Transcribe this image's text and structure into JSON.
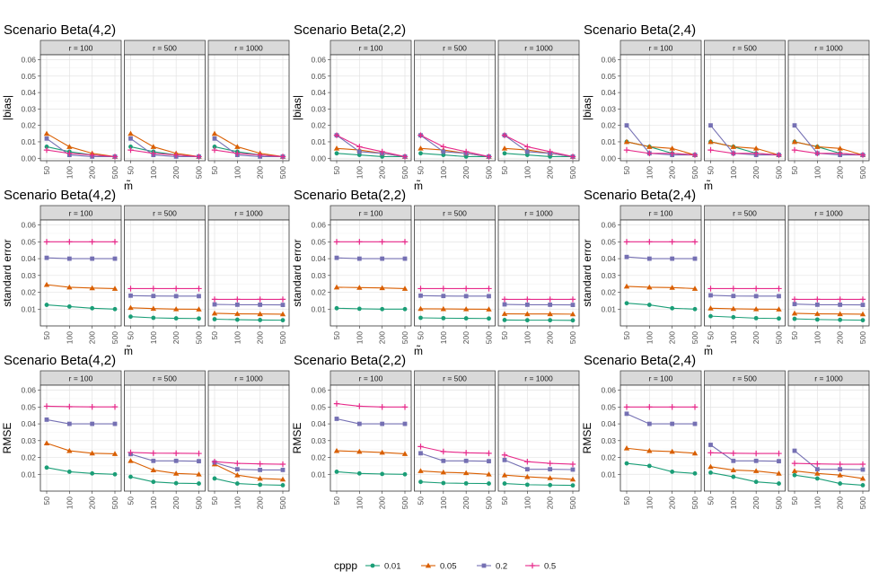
{
  "legend": {
    "title": "cppp",
    "entries": [
      {
        "label": "0.01",
        "color": "#1B9E77",
        "shape": "circle"
      },
      {
        "label": "0.05",
        "color": "#D95F02",
        "shape": "triangle"
      },
      {
        "label": "0.2",
        "color": "#7570B3",
        "shape": "square"
      },
      {
        "label": "0.5",
        "color": "#E7298A",
        "shape": "plus"
      }
    ]
  },
  "chart_data": {
    "type": "line",
    "facet_labels": [
      "r = 100",
      "r = 500",
      "r = 1000"
    ],
    "x": [
      "50",
      "100",
      "200",
      "500"
    ],
    "xlabel": "m̃",
    "y_ticks": [
      "0.01",
      "0.02",
      "0.03",
      "0.04",
      "0.05",
      "0.06"
    ],
    "ylim": [
      0,
      0.063
    ],
    "scenarios": [
      "Scenario Beta(4,2)",
      "Scenario Beta(2,2)",
      "Scenario Beta(2,4)"
    ],
    "rows": [
      {
        "ylabel": "|bias|",
        "y_ticks": [
          "0.00",
          "0.01",
          "0.02",
          "0.03",
          "0.04",
          "0.05",
          "0.06"
        ],
        "ylim": [
          -0.0015,
          0.063
        ],
        "show_xlabel": true,
        "panels": [
          [
            [
              [
                0.007,
                0.004,
                0.002,
                0.001
              ],
              [
                0.015,
                0.007,
                0.003,
                0.001
              ],
              [
                0.012,
                0.002,
                0.001,
                0.001
              ],
              [
                0.005,
                0.003,
                0.002,
                0.001
              ]
            ],
            [
              [
                0.007,
                0.004,
                0.002,
                0.001
              ],
              [
                0.015,
                0.007,
                0.003,
                0.001
              ],
              [
                0.012,
                0.002,
                0.001,
                0.001
              ],
              [
                0.005,
                0.003,
                0.002,
                0.001
              ]
            ],
            [
              [
                0.007,
                0.004,
                0.002,
                0.001
              ],
              [
                0.015,
                0.007,
                0.003,
                0.001
              ],
              [
                0.012,
                0.002,
                0.001,
                0.001
              ],
              [
                0.005,
                0.003,
                0.002,
                0.001
              ]
            ]
          ],
          [
            [
              [
                0.003,
                0.002,
                0.001,
                0.001
              ],
              [
                0.006,
                0.005,
                0.003,
                0.001
              ],
              [
                0.014,
                0.004,
                0.003,
                0.001
              ],
              [
                0.014,
                0.007,
                0.004,
                0.001
              ]
            ],
            [
              [
                0.003,
                0.002,
                0.001,
                0.001
              ],
              [
                0.006,
                0.005,
                0.003,
                0.001
              ],
              [
                0.014,
                0.004,
                0.003,
                0.001
              ],
              [
                0.014,
                0.007,
                0.004,
                0.001
              ]
            ],
            [
              [
                0.003,
                0.002,
                0.001,
                0.001
              ],
              [
                0.006,
                0.005,
                0.003,
                0.001
              ],
              [
                0.014,
                0.004,
                0.003,
                0.001
              ],
              [
                0.014,
                0.007,
                0.004,
                0.001
              ]
            ]
          ],
          [
            [
              [
                0.01,
                0.007,
                0.003,
                0.002
              ],
              [
                0.01,
                0.007,
                0.006,
                0.002
              ],
              [
                0.02,
                0.003,
                0.002,
                0.002
              ],
              [
                0.005,
                0.003,
                0.003,
                0.002
              ]
            ],
            [
              [
                0.01,
                0.007,
                0.003,
                0.002
              ],
              [
                0.01,
                0.007,
                0.006,
                0.002
              ],
              [
                0.02,
                0.003,
                0.002,
                0.002
              ],
              [
                0.005,
                0.003,
                0.003,
                0.002
              ]
            ],
            [
              [
                0.01,
                0.007,
                0.003,
                0.002
              ],
              [
                0.01,
                0.007,
                0.006,
                0.002
              ],
              [
                0.02,
                0.003,
                0.002,
                0.002
              ],
              [
                0.005,
                0.003,
                0.003,
                0.002
              ]
            ]
          ]
        ]
      },
      {
        "ylabel": "standard error",
        "show_xlabel": true,
        "panels": [
          [
            [
              [
                0.0125,
                0.0115,
                0.0105,
                0.01
              ],
              [
                0.0245,
                0.023,
                0.0225,
                0.0222
              ],
              [
                0.0405,
                0.04,
                0.04,
                0.04
              ],
              [
                0.05,
                0.05,
                0.05,
                0.05
              ]
            ],
            [
              [
                0.0055,
                0.0048,
                0.0045,
                0.0044
              ],
              [
                0.0108,
                0.0103,
                0.01,
                0.0099
              ],
              [
                0.018,
                0.0178,
                0.0177,
                0.0177
              ],
              [
                0.0222,
                0.0222,
                0.0222,
                0.0222
              ]
            ],
            [
              [
                0.004,
                0.0037,
                0.0035,
                0.0034
              ],
              [
                0.0075,
                0.0072,
                0.0071,
                0.007
              ],
              [
                0.0128,
                0.0126,
                0.0126,
                0.0125
              ],
              [
                0.0158,
                0.0158,
                0.0158,
                0.0158
              ]
            ]
          ],
          [
            [
              [
                0.0105,
                0.0102,
                0.01,
                0.01
              ],
              [
                0.023,
                0.0228,
                0.0226,
                0.0222
              ],
              [
                0.0405,
                0.04,
                0.04,
                0.04
              ],
              [
                0.05,
                0.05,
                0.05,
                0.05
              ]
            ],
            [
              [
                0.0048,
                0.0046,
                0.0045,
                0.0044
              ],
              [
                0.0102,
                0.0101,
                0.01,
                0.0099
              ],
              [
                0.018,
                0.0178,
                0.0177,
                0.0177
              ],
              [
                0.0222,
                0.0222,
                0.0222,
                0.0222
              ]
            ],
            [
              [
                0.0035,
                0.0034,
                0.0034,
                0.0033
              ],
              [
                0.0072,
                0.0071,
                0.0071,
                0.007
              ],
              [
                0.0128,
                0.0126,
                0.0126,
                0.0125
              ],
              [
                0.0158,
                0.0158,
                0.0158,
                0.0158
              ]
            ]
          ],
          [
            [
              [
                0.0135,
                0.0125,
                0.0105,
                0.01
              ],
              [
                0.0235,
                0.023,
                0.0228,
                0.0222
              ],
              [
                0.041,
                0.04,
                0.04,
                0.04
              ],
              [
                0.05,
                0.05,
                0.05,
                0.05
              ]
            ],
            [
              [
                0.0058,
                0.0052,
                0.0046,
                0.0044
              ],
              [
                0.0105,
                0.0102,
                0.01,
                0.0099
              ],
              [
                0.0182,
                0.0178,
                0.0177,
                0.0177
              ],
              [
                0.0222,
                0.0222,
                0.0222,
                0.0222
              ]
            ],
            [
              [
                0.0042,
                0.0038,
                0.0036,
                0.0034
              ],
              [
                0.0075,
                0.0072,
                0.0071,
                0.007
              ],
              [
                0.013,
                0.0126,
                0.0126,
                0.0125
              ],
              [
                0.0158,
                0.0158,
                0.0158,
                0.0158
              ]
            ]
          ]
        ]
      },
      {
        "ylabel": "RMSE",
        "show_xlabel": false,
        "panels": [
          [
            [
              [
                0.014,
                0.0115,
                0.0105,
                0.01
              ],
              [
                0.0285,
                0.024,
                0.0225,
                0.0222
              ],
              [
                0.0425,
                0.04,
                0.04,
                0.04
              ],
              [
                0.0505,
                0.0502,
                0.0501,
                0.0501
              ]
            ],
            [
              [
                0.0085,
                0.0055,
                0.0047,
                0.0045
              ],
              [
                0.018,
                0.0125,
                0.0105,
                0.01
              ],
              [
                0.022,
                0.018,
                0.018,
                0.0178
              ],
              [
                0.023,
                0.0226,
                0.0225,
                0.0224
              ]
            ],
            [
              [
                0.0075,
                0.0045,
                0.0038,
                0.0035
              ],
              [
                0.016,
                0.0095,
                0.0075,
                0.007
              ],
              [
                0.017,
                0.013,
                0.0126,
                0.0126
              ],
              [
                0.0175,
                0.0165,
                0.0162,
                0.016
              ]
            ]
          ],
          [
            [
              [
                0.0115,
                0.0105,
                0.0102,
                0.01
              ],
              [
                0.024,
                0.0235,
                0.023,
                0.0222
              ],
              [
                0.043,
                0.04,
                0.04,
                0.04
              ],
              [
                0.052,
                0.0505,
                0.05,
                0.05
              ]
            ],
            [
              [
                0.0055,
                0.0048,
                0.0046,
                0.0045
              ],
              [
                0.012,
                0.0112,
                0.0108,
                0.01
              ],
              [
                0.0225,
                0.018,
                0.018,
                0.0178
              ],
              [
                0.0265,
                0.0235,
                0.0228,
                0.0225
              ]
            ],
            [
              [
                0.0045,
                0.0038,
                0.0036,
                0.0034
              ],
              [
                0.0095,
                0.0085,
                0.0078,
                0.007
              ],
              [
                0.0185,
                0.013,
                0.013,
                0.0128
              ],
              [
                0.0215,
                0.0175,
                0.0165,
                0.016
              ]
            ]
          ],
          [
            [
              [
                0.0165,
                0.015,
                0.0115,
                0.0105
              ],
              [
                0.0255,
                0.024,
                0.0235,
                0.0225
              ],
              [
                0.046,
                0.04,
                0.04,
                0.04
              ],
              [
                0.05,
                0.05,
                0.05,
                0.05
              ]
            ],
            [
              [
                0.011,
                0.0085,
                0.0055,
                0.0045
              ],
              [
                0.0145,
                0.0125,
                0.012,
                0.0105
              ],
              [
                0.0275,
                0.018,
                0.018,
                0.0178
              ],
              [
                0.0228,
                0.0225,
                0.0224,
                0.0224
              ]
            ],
            [
              [
                0.0095,
                0.0075,
                0.0045,
                0.0035
              ],
              [
                0.012,
                0.0105,
                0.0095,
                0.0075
              ],
              [
                0.024,
                0.013,
                0.013,
                0.0128
              ],
              [
                0.0165,
                0.0162,
                0.016,
                0.016
              ]
            ]
          ]
        ]
      }
    ]
  }
}
